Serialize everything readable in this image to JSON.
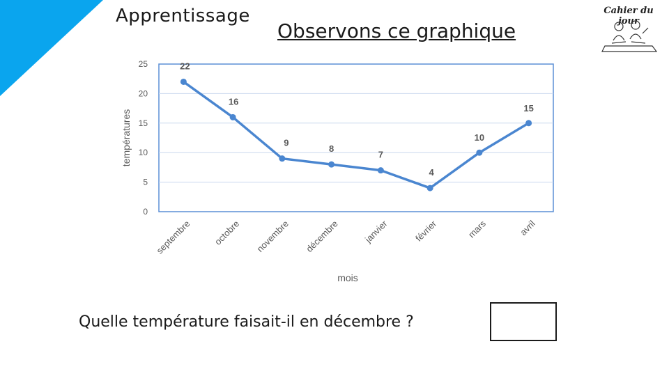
{
  "header": {
    "section_label": "Apprentissage",
    "title": "Observons ce graphique",
    "logo_text": "Cahier du jour"
  },
  "colors": {
    "accent": "#0aa5ee",
    "series": "#4a86d0",
    "plot_border": "#5b8fd6",
    "grid": "#c9d8ee",
    "axis_text": "#595959"
  },
  "chart_data": {
    "type": "line",
    "title": "",
    "xlabel": "mois",
    "ylabel": "températures",
    "categories": [
      "septembre",
      "octobre",
      "novembre",
      "décembre",
      "janvier",
      "février",
      "mars",
      "avril"
    ],
    "values": [
      22,
      16,
      9,
      8,
      7,
      4,
      10,
      15
    ],
    "ylim": [
      0,
      25
    ],
    "yticks": [
      "0",
      "5",
      "10",
      "15",
      "20",
      "25"
    ],
    "data_labels": [
      "22",
      "16",
      "9",
      "8",
      "7",
      "4",
      "10",
      "15"
    ],
    "grid": true,
    "legend": "none"
  },
  "question": {
    "text": "Quelle température faisait-il en décembre ?"
  }
}
